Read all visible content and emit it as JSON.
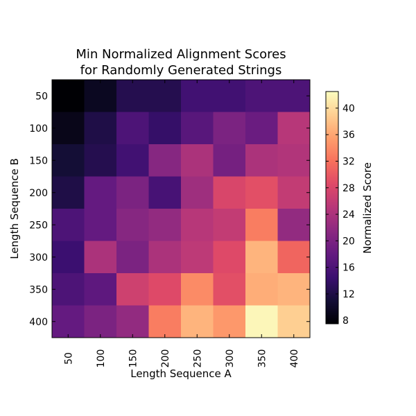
{
  "chart_data": {
    "type": "heatmap",
    "title": [
      "Min Normalized Alignment Scores",
      "for Randomly Generated Strings"
    ],
    "xlabel": "Length Sequence A",
    "ylabel": "Length Sequence B",
    "x_categories": [
      "50",
      "100",
      "150",
      "200",
      "250",
      "300",
      "350",
      "400"
    ],
    "y_categories": [
      "50",
      "100",
      "150",
      "200",
      "250",
      "300",
      "350",
      "400"
    ],
    "values": [
      [
        7.5,
        9.5,
        12.5,
        12.5,
        15,
        15,
        16,
        16
      ],
      [
        9,
        12,
        16,
        14,
        17,
        20,
        18.5,
        25
      ],
      [
        11,
        12.5,
        15,
        21,
        24,
        19.5,
        24,
        24.5
      ],
      [
        12,
        18,
        20,
        15.5,
        23,
        28,
        29,
        26
      ],
      [
        16,
        18,
        21,
        22,
        25,
        26,
        33,
        22
      ],
      [
        14.5,
        24,
        20,
        24,
        25.5,
        28.5,
        37,
        31
      ],
      [
        16,
        17.5,
        27,
        28.5,
        34,
        29,
        36.5,
        37
      ],
      [
        18,
        20,
        22,
        33,
        37,
        35,
        42,
        39
      ]
    ],
    "colorbar": {
      "label": "Normalized Score",
      "range": [
        7.5,
        42.5
      ],
      "ticks": [
        8,
        12,
        16,
        20,
        24,
        28,
        32,
        36,
        40
      ]
    },
    "colormap": "magma"
  }
}
